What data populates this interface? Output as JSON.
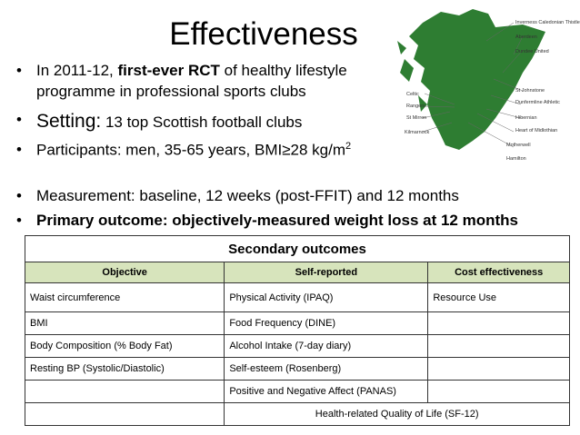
{
  "title": "Effectiveness",
  "bullets": [
    {
      "pre": "In 2011-12, ",
      "bold": "first-ever RCT",
      "post": " of healthy lifestyle",
      "line2": "programme in professional sports clubs"
    },
    {
      "lead": "Setting:",
      "text": " 13 top Scottish football clubs"
    },
    {
      "text": "Participants: men, 35-65 years, BMI≥28 kg/m",
      "sup": "2"
    },
    {
      "text": "Measurement: baseline, 12 weeks  (post-FFIT) and 12 months"
    },
    {
      "bold": "Primary outcome: objectively-measured weight loss at 12 months"
    }
  ],
  "map": {
    "clubs": [
      "Inverness Caledonian Thistle",
      "Aberdeen",
      "Dundee United",
      "St Johnstone",
      "Dunfermline Athletic",
      "Hibernian",
      "Heart of Midlothian",
      "Motherwell",
      "Hamilton",
      "Celtic",
      "Rangers",
      "St Mirren",
      "Kilmarnock"
    ]
  },
  "table": {
    "caption": "Secondary outcomes",
    "columns": [
      "Objective",
      "Self-reported",
      "Cost effectiveness"
    ],
    "rows": [
      [
        "Waist circumference",
        "Physical Activity (IPAQ)",
        "Resource Use"
      ],
      [
        "BMI",
        "Food Frequency (DINE)",
        null
      ],
      [
        "Body Composition (% Body Fat)",
        "Alcohol Intake (7-day diary)",
        null
      ],
      [
        "Resting BP (Systolic/Diastolic)",
        "Self-esteem (Rosenberg)",
        null
      ],
      [
        null,
        "Positive and Negative Affect (PANAS)",
        null
      ],
      [
        null,
        "Health-related Quality of Life (SF-12)"
      ]
    ]
  }
}
